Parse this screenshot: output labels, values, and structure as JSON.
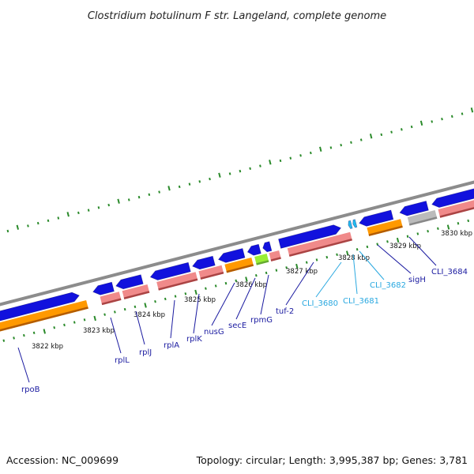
{
  "title": "Clostridium botulinum F str. Langeland, complete genome",
  "footer": {
    "accession": "Accession: NC_009699",
    "summary": "Topology: circular; Length: 3,995,387 bp; Genes: 3,781"
  },
  "kbp_labels": [
    "3822 kbp",
    "3823 kbp",
    "3824 kbp",
    "3825 kbp",
    "3826 kbp",
    "3827 kbp",
    "3828 kbp",
    "3829 kbp",
    "3830 kbp"
  ],
  "genes": [
    {
      "name": "rpoB",
      "color": "#1a1aa0"
    },
    {
      "name": "rplL",
      "color": "#1a1aa0"
    },
    {
      "name": "rplJ",
      "color": "#1a1aa0"
    },
    {
      "name": "rplA",
      "color": "#1a1aa0"
    },
    {
      "name": "rplK",
      "color": "#1a1aa0"
    },
    {
      "name": "nusG",
      "color": "#1a1aa0"
    },
    {
      "name": "secE",
      "color": "#1a1aa0"
    },
    {
      "name": "rpmG",
      "color": "#1a1aa0"
    },
    {
      "name": "tuf-2",
      "color": "#1a1aa0"
    },
    {
      "name": "CLI_3680",
      "color": "#29a8e0"
    },
    {
      "name": "CLI_3681",
      "color": "#29a8e0"
    },
    {
      "name": "CLI_3682",
      "color": "#29a8e0"
    },
    {
      "name": "sigH",
      "color": "#1a1aa0"
    },
    {
      "name": "CLI_3684",
      "color": "#1a1aa0"
    }
  ],
  "colors": {
    "backbone": "#8c8c8c",
    "cds": "#1111dd",
    "cds_light": "#22bbee",
    "gene_track": "#f08a8a",
    "orange_track": "#ff9900",
    "grey_track": "#bbbbbb",
    "green_track": "#99ee33",
    "tick": "#2a8a2a"
  }
}
